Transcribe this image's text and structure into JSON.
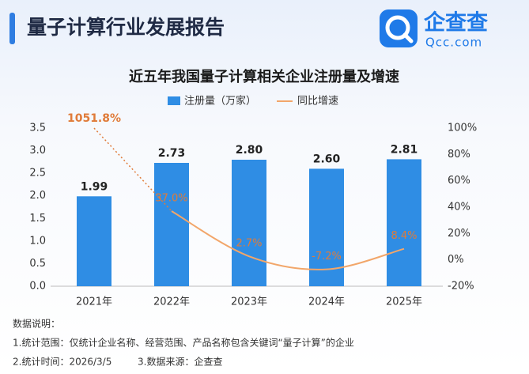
{
  "header": {
    "title": "量子计算行业发展报告",
    "logo_name": "企查查",
    "logo_site": "Qcc.com"
  },
  "chart_data": {
    "type": "bar_line",
    "title": "近五年我国量子计算相关企业注册量及增速",
    "categories": [
      "2021年",
      "2022年",
      "2023年",
      "2024年",
      "2025年"
    ],
    "series": [
      {
        "name": "注册量（万家）",
        "color": "#2f8de4",
        "type": "bar",
        "values": [
          1.99,
          2.73,
          2.8,
          2.6,
          2.81
        ],
        "value_labels": [
          "1.99",
          "2.73",
          "2.80",
          "2.60",
          "2.81"
        ]
      },
      {
        "name": "同比增速",
        "color": "#f2a66a",
        "type": "line",
        "axis": "y2",
        "values": [
          1051.8,
          37.0,
          2.7,
          -7.2,
          8.4
        ],
        "value_labels": [
          "1051.8%",
          "37.0%",
          "2.7%",
          "-7.2%",
          "8.4%"
        ]
      }
    ],
    "ylim": [
      0,
      3.5
    ],
    "yticks": [
      {
        "value": 0,
        "label": "0.0"
      },
      {
        "value": 0.5,
        "label": "0.5"
      },
      {
        "value": 1,
        "label": "1.0"
      },
      {
        "value": 1.5,
        "label": "1.5"
      },
      {
        "value": 2,
        "label": "2.0"
      },
      {
        "value": 2.5,
        "label": "2.5"
      },
      {
        "value": 3,
        "label": "3.0"
      },
      {
        "value": 3.5,
        "label": "3.5"
      }
    ],
    "y2lim": [
      -20,
      100
    ],
    "y2ticks": [
      {
        "value": -20,
        "label": "-20%"
      },
      {
        "value": 0,
        "label": "0%"
      },
      {
        "value": 20,
        "label": "20%"
      },
      {
        "value": 40,
        "label": "40%"
      },
      {
        "value": 60,
        "label": "60%"
      },
      {
        "value": 80,
        "label": "80%"
      },
      {
        "value": 100,
        "label": "100%"
      }
    ],
    "grid": false,
    "legend": "top"
  },
  "notes": {
    "heading": "数据说明：",
    "lines": [
      "1.统计范围：仅统计企业名称、经营范围、产品名称包含关键词“量子计算”的企业",
      "2.统计时间：2026/3/5",
      "3.数据来源：企查查"
    ]
  }
}
